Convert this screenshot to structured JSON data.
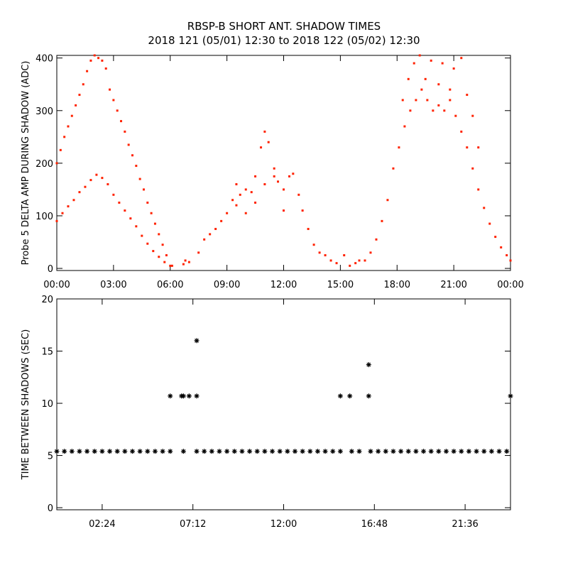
{
  "chart_data": [
    {
      "type": "scatter",
      "title": "RBSP-B SHORT ANT. SHADOW TIMES",
      "subtitle": "2018 121 (05/01) 12:30 to 2018 122 (05/02) 12:30",
      "y_label": "Probe 5 DELTA AMP DURING SHADOW (ADC)",
      "xlim": [
        0,
        24
      ],
      "ylim": [
        -4,
        405
      ],
      "xticks": [
        {
          "value": 0,
          "label": "00:00"
        },
        {
          "value": 3,
          "label": "03:00"
        },
        {
          "value": 6,
          "label": "06:00"
        },
        {
          "value": 9,
          "label": "09:00"
        },
        {
          "value": 12,
          "label": "12:00"
        },
        {
          "value": 15,
          "label": "15:00"
        },
        {
          "value": 18,
          "label": "18:00"
        },
        {
          "value": 21,
          "label": "21:00"
        },
        {
          "value": 24,
          "label": "00:00"
        }
      ],
      "yticks": [
        0,
        100,
        200,
        300,
        400
      ],
      "marker": "dot",
      "series": [
        {
          "color": "#ff2200",
          "x": [
            0,
            0.3,
            0.6,
            0.9,
            1.2,
            1.5,
            1.8,
            2.1,
            2.4,
            2.7,
            3.0,
            3.3,
            3.6,
            3.9,
            4.2,
            4.5,
            4.8,
            5.1,
            5.4,
            5.7,
            6.0
          ],
          "values": [
            90,
            105,
            118,
            130,
            145,
            155,
            168,
            178,
            172,
            160,
            140,
            125,
            110,
            95,
            80,
            62,
            47,
            33,
            22,
            12,
            5
          ]
        },
        {
          "color": "#ff2200",
          "x": [
            0,
            0.2,
            0.4,
            0.6,
            0.8,
            1.0,
            1.2,
            1.4,
            1.6,
            1.8,
            2.0,
            2.2,
            2.4,
            2.6,
            2.8,
            3.0,
            3.2,
            3.4,
            3.6,
            3.8,
            4.0,
            4.2,
            4.4,
            4.6,
            4.8,
            5.0,
            5.2,
            5.4,
            5.6,
            5.8,
            6.1
          ],
          "values": [
            200,
            225,
            250,
            270,
            290,
            310,
            330,
            350,
            375,
            395,
            405,
            400,
            395,
            380,
            340,
            320,
            300,
            280,
            260,
            235,
            215,
            195,
            170,
            150,
            125,
            105,
            85,
            65,
            45,
            25,
            5
          ]
        },
        {
          "color": "#ff2200",
          "x": [
            6.7,
            6.8,
            7.0
          ],
          "values": [
            8,
            15,
            12
          ]
        },
        {
          "color": "#ff2200",
          "x": [
            7.5,
            7.8,
            8.1,
            8.4,
            8.7,
            9.0,
            9.3,
            9.5,
            9.7,
            10.0,
            10.3,
            10.5,
            10.8,
            11.0,
            11.2,
            11.5,
            11.7,
            12.0,
            12.3,
            12.5,
            12.8,
            13.0,
            13.3,
            13.6,
            13.9,
            14.2,
            14.5,
            14.8,
            15.2,
            15.5,
            15.8,
            16.0
          ],
          "values": [
            30,
            55,
            65,
            75,
            90,
            105,
            130,
            160,
            140,
            150,
            145,
            175,
            230,
            260,
            240,
            190,
            165,
            150,
            175,
            180,
            140,
            110,
            75,
            45,
            30,
            25,
            15,
            10,
            25,
            5,
            10,
            15
          ]
        },
        {
          "color": "#ff2200",
          "x": [
            9.5,
            10.0,
            10.5,
            11.0,
            11.5,
            12.0
          ],
          "values": [
            120,
            105,
            125,
            160,
            175,
            110
          ]
        },
        {
          "color": "#ff2200",
          "x": [
            16.3,
            16.6,
            16.9,
            17.2,
            17.5,
            17.8,
            18.1,
            18.4,
            18.7,
            19.0,
            19.3,
            19.6,
            19.9,
            20.2,
            20.5,
            20.8,
            21.1,
            21.4,
            21.7,
            22.0,
            22.3,
            22.6,
            22.9,
            23.2,
            23.5,
            23.8,
            24.0
          ],
          "values": [
            15,
            30,
            55,
            90,
            130,
            190,
            230,
            270,
            300,
            320,
            340,
            320,
            300,
            310,
            300,
            320,
            290,
            260,
            230,
            190,
            150,
            115,
            85,
            60,
            40,
            25,
            15
          ]
        },
        {
          "color": "#ff2200",
          "x": [
            18.3,
            18.6,
            18.9,
            19.2,
            19.5,
            19.8,
            20.2,
            20.4,
            20.8,
            21.0,
            21.4,
            21.7,
            22.0,
            22.3
          ],
          "values": [
            320,
            360,
            390,
            405,
            360,
            395,
            350,
            390,
            340,
            380,
            400,
            330,
            290,
            230
          ]
        }
      ]
    },
    {
      "type": "scatter",
      "y_label": "TIME BETWEEN SHADOWS (SEC)",
      "xlim": [
        0,
        24
      ],
      "ylim": [
        -0.2,
        20
      ],
      "xticks": [
        {
          "value": 2.4,
          "label": "02:24"
        },
        {
          "value": 7.2,
          "label": "07:12"
        },
        {
          "value": 12,
          "label": "12:00"
        },
        {
          "value": 16.8,
          "label": "16:48"
        },
        {
          "value": 21.6,
          "label": "21:36"
        }
      ],
      "yticks": [
        0,
        5,
        10,
        15,
        20
      ],
      "marker": "asterisk",
      "series": [
        {
          "color": "#000000",
          "x": [
            0,
            0.4,
            0.8,
            1.2,
            1.6,
            2.0,
            2.4,
            2.8,
            3.2,
            3.6,
            4.0,
            4.4,
            4.8,
            5.2,
            5.6,
            6.0,
            6.7,
            7.4,
            7.8,
            8.2,
            8.6,
            9.0,
            9.4,
            9.8,
            10.2,
            10.6,
            11.0,
            11.4,
            11.8,
            12.2,
            12.6,
            13.0,
            13.4,
            13.8,
            14.2,
            14.6,
            15.0,
            15.6,
            16.0,
            16.6,
            17.0,
            17.4,
            17.8,
            18.2,
            18.6,
            19.0,
            19.4,
            19.8,
            20.2,
            20.6,
            21.0,
            21.4,
            21.8,
            22.2,
            22.6,
            23.0,
            23.4,
            23.8
          ],
          "values": [
            5.4,
            5.4,
            5.4,
            5.4,
            5.4,
            5.4,
            5.4,
            5.4,
            5.4,
            5.4,
            5.4,
            5.4,
            5.4,
            5.4,
            5.4,
            5.4,
            5.4,
            5.4,
            5.4,
            5.4,
            5.4,
            5.4,
            5.4,
            5.4,
            5.4,
            5.4,
            5.4,
            5.4,
            5.4,
            5.4,
            5.4,
            5.4,
            5.4,
            5.4,
            5.4,
            5.4,
            5.4,
            5.4,
            5.4,
            5.4,
            5.4,
            5.4,
            5.4,
            5.4,
            5.4,
            5.4,
            5.4,
            5.4,
            5.4,
            5.4,
            5.4,
            5.4,
            5.4,
            5.4,
            5.4,
            5.4,
            5.4,
            5.4
          ]
        },
        {
          "color": "#000000",
          "x": [
            6.0,
            6.6,
            6.7,
            7.0,
            7.4,
            7.4,
            15.0,
            15.5,
            16.5,
            16.5,
            24.0
          ],
          "values": [
            10.7,
            10.7,
            10.7,
            10.7,
            10.7,
            16,
            10.7,
            10.7,
            10.7,
            13.7,
            10.7
          ]
        }
      ]
    }
  ]
}
